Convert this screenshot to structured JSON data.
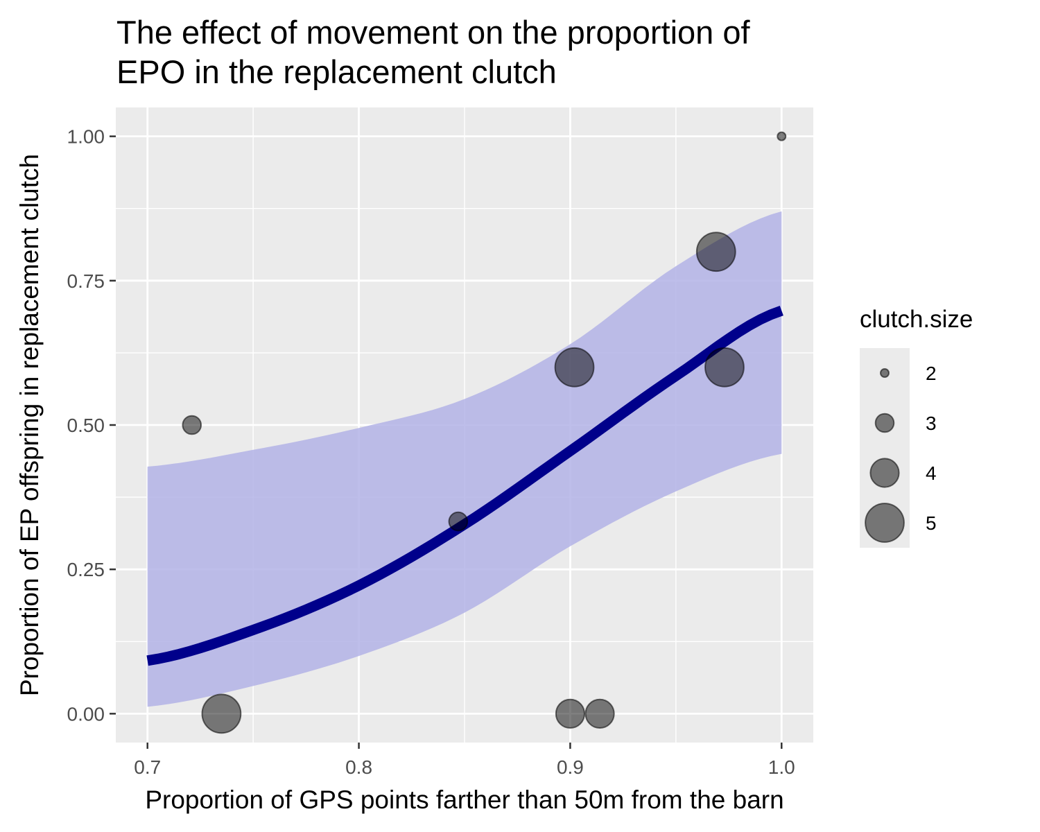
{
  "chart_data": {
    "type": "scatter",
    "title_lines": [
      "The effect of movement on the proportion of",
      "EPO in the replacement clutch"
    ],
    "xlabel": "Proportion of GPS points farther than 50m from the barn",
    "ylabel": "Proportion of EP offspring in replacement clutch",
    "xlim": [
      0.685,
      1.015
    ],
    "ylim": [
      -0.05,
      1.05
    ],
    "x_ticks": [
      0.7,
      0.8,
      0.9,
      1.0
    ],
    "x_tick_labels": [
      "0.7",
      "0.8",
      "0.9",
      "1.0"
    ],
    "y_ticks": [
      0,
      0.25,
      0.5,
      0.75,
      1.0
    ],
    "y_tick_labels": [
      "0.00",
      "0.25",
      "0.50",
      "0.75",
      "1.00"
    ],
    "grid": true,
    "panel_background": "#ebebeb",
    "points": [
      {
        "x": 0.721,
        "y": 0.5,
        "clutch_size": 3
      },
      {
        "x": 0.735,
        "y": 0.0,
        "clutch_size": 5
      },
      {
        "x": 0.847,
        "y": 0.333,
        "clutch_size": 3
      },
      {
        "x": 0.9,
        "y": 0.0,
        "clutch_size": 4
      },
      {
        "x": 0.902,
        "y": 0.6,
        "clutch_size": 5
      },
      {
        "x": 0.914,
        "y": 0.0,
        "clutch_size": 4
      },
      {
        "x": 0.969,
        "y": 0.8,
        "clutch_size": 5
      },
      {
        "x": 0.973,
        "y": 0.6,
        "clutch_size": 5
      },
      {
        "x": 1.0,
        "y": 1.0,
        "clutch_size": 2
      }
    ],
    "point_color": "#000000",
    "point_alpha": 0.5,
    "fit_line": {
      "color": "#00008b",
      "x": [
        0.7,
        0.75,
        0.8,
        0.85,
        0.9,
        0.95,
        1.0
      ],
      "y": [
        0.092,
        0.145,
        0.222,
        0.328,
        0.455,
        0.585,
        0.698
      ]
    },
    "confidence_band": {
      "color": "#b3b3e6",
      "x": [
        0.7,
        0.75,
        0.8,
        0.85,
        0.9,
        0.95,
        1.0
      ],
      "lower": [
        0.012,
        0.048,
        0.1,
        0.175,
        0.29,
        0.385,
        0.45
      ],
      "upper": [
        0.428,
        0.457,
        0.495,
        0.545,
        0.64,
        0.775,
        0.87
      ]
    },
    "legend": {
      "title": "clutch.size",
      "position": "right",
      "items": [
        {
          "label": "2",
          "clutch_size": 2
        },
        {
          "label": "3",
          "clutch_size": 3
        },
        {
          "label": "4",
          "clutch_size": 4
        },
        {
          "label": "5",
          "clutch_size": 5
        }
      ]
    }
  }
}
